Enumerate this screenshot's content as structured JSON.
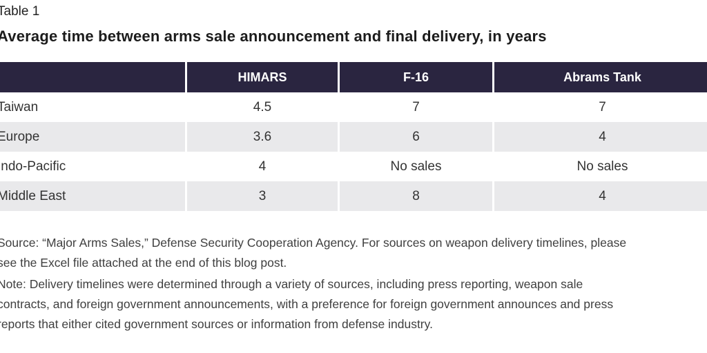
{
  "table_label": "Table 1",
  "title": "Average time between arms sale announcement and final delivery, in years",
  "table": {
    "columns": [
      "",
      "HIMARS",
      "F-16",
      "Abrams Tank"
    ],
    "rows": [
      {
        "label": "Taiwan",
        "values": [
          "4.5",
          "7",
          "7"
        ]
      },
      {
        "label": "Europe",
        "values": [
          "3.6",
          "6",
          "4"
        ]
      },
      {
        "label": "Indo-Pacific",
        "values": [
          "4",
          "No sales",
          "No sales"
        ]
      },
      {
        "label": "Middle East",
        "values": [
          "3",
          "8",
          "4"
        ]
      }
    ]
  },
  "footnotes": {
    "source_lines": [
      "Source: “Major Arms Sales,” Defense Security Cooperation Agency. For sources on weapon delivery timelines, please",
      "see the Excel file attached at the end of this blog post."
    ],
    "note_lines": [
      "Note: Delivery timelines were determined through a variety of sources, including press reporting, weapon sale",
      "contracts, and foreign government announcements, with a preference for foreign government announces and press",
      "reports that either cited government sources or information from defense industry."
    ]
  },
  "colors": {
    "header_bg": "#2a2540",
    "header_text": "#ffffff",
    "alt_row_bg": "#e9e9eb",
    "body_text": "#333333"
  },
  "chart_data": {
    "type": "table",
    "title": "Average time between arms sale announcement and final delivery, in years",
    "caption_label": "Table 1",
    "columns": [
      "HIMARS",
      "F-16",
      "Abrams Tank"
    ],
    "row_labels": [
      "Taiwan",
      "Europe",
      "Indo-Pacific",
      "Middle East"
    ],
    "rows": [
      [
        "4.5",
        "7",
        "7"
      ],
      [
        "3.6",
        "6",
        "4"
      ],
      [
        "4",
        "No sales",
        "No sales"
      ],
      [
        "3",
        "8",
        "4"
      ]
    ],
    "units": "years",
    "source": "Source: “Major Arms Sales,” Defense Security Cooperation Agency. For sources on weapon delivery timelines, please see the Excel file attached at the end of this blog post.",
    "note": "Note: Delivery timelines were determined through a variety of sources, including press reporting, weapon sale contracts, and foreign government announcements, with a preference for foreign government announces and press reports that either cited government sources or information from defense industry."
  }
}
